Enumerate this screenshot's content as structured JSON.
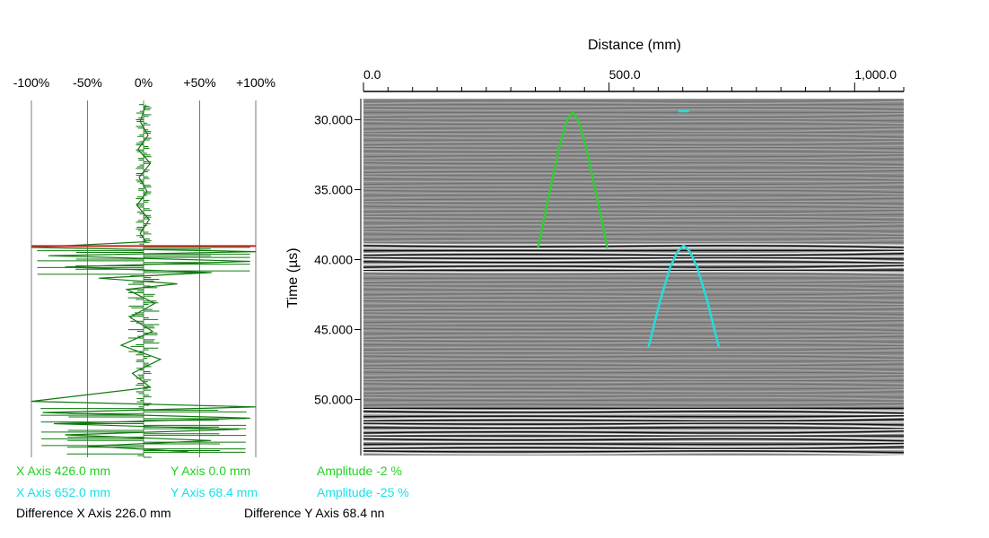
{
  "colors": {
    "green_cursor": "#33cc33",
    "cyan_cursor": "#22dddd",
    "reference_line": "#cc2222",
    "amplitude_trace": "#0f7a0f",
    "readout_green": "#1fd11f",
    "readout_cyan": "#18e0e8",
    "scan_background": "#8a8a8a"
  },
  "chart_data": [
    {
      "type": "line",
      "title": "",
      "orientation": "vertical amplitude profile (A-scan)",
      "x_ticks": [
        "-100%",
        "-50%",
        "0%",
        "+50%",
        "+100%"
      ],
      "xlim": [
        -100,
        100
      ],
      "ylim": [
        28.5,
        54
      ],
      "grid": true,
      "reference_line_y": 38.9,
      "series": [
        {
          "y": [
            28.8,
            30,
            31,
            32,
            33,
            34,
            35,
            36,
            37,
            38,
            38.6,
            39.0,
            39.3,
            39.6,
            40.0,
            40.4,
            40.8,
            41.2,
            41.6,
            42,
            43,
            44,
            45,
            46,
            47,
            48,
            49,
            50.0,
            50.4,
            50.8,
            51.2,
            51.6,
            52.0,
            52.4,
            52.8,
            53.2,
            53.6
          ],
          "x": [
            2,
            -3,
            4,
            -5,
            6,
            -4,
            3,
            -6,
            5,
            -3,
            2,
            -100,
            100,
            -85,
            95,
            -70,
            60,
            -40,
            30,
            -15,
            10,
            -12,
            8,
            -20,
            15,
            -10,
            6,
            -100,
            100,
            -90,
            95,
            -80,
            85,
            -70,
            60,
            -50,
            40
          ]
        }
      ]
    },
    {
      "type": "heatmap",
      "title": "",
      "xlabel": "Distance (mm)",
      "ylabel": "Time (µs)",
      "x_ticks": [
        "0.0",
        "500.0",
        "1,000.0"
      ],
      "y_ticks": [
        "30.000",
        "35.000",
        "40.000",
        "45.000",
        "50.000"
      ],
      "xlim": [
        0,
        1100
      ],
      "ylim": [
        28.5,
        54
      ],
      "grid": false,
      "bands": [
        {
          "from": 38.8,
          "to": 41.0,
          "strength": "strong"
        },
        {
          "from": 50.6,
          "to": 54.0,
          "strength": "strong"
        }
      ],
      "overlays": [
        {
          "name": "green",
          "apex_x": 426.0,
          "apex_y": 29.5,
          "x": [
            355,
            380,
            400,
            415,
            426,
            437,
            452,
            472,
            497
          ],
          "y": [
            39.2,
            35.0,
            31.8,
            30.0,
            29.5,
            30.0,
            31.8,
            35.0,
            39.2
          ]
        },
        {
          "name": "cyan",
          "apex_x": 652.0,
          "apex_y": 39.0,
          "x": [
            580,
            605,
            625,
            640,
            652,
            664,
            679,
            699,
            724
          ],
          "y": [
            46.3,
            42.8,
            40.5,
            39.4,
            39.0,
            39.4,
            40.5,
            42.8,
            46.3
          ]
        }
      ],
      "markers": [
        {
          "name": "cyan-tick",
          "x": 652,
          "y": 29.4
        }
      ]
    }
  ],
  "readouts": {
    "cursor1": {
      "x_axis": "X Axis  426.0 mm",
      "y_axis": "Y Axis  0.0 mm",
      "amplitude": "Amplitude  -2 %"
    },
    "cursor2": {
      "x_axis": "X Axis  652.0 mm",
      "y_axis": "Y Axis  68.4 mm",
      "amplitude": "Amplitude  -25 %"
    },
    "difference": {
      "x_axis": "Difference X Axis  226.0 mm",
      "y_axis": "Difference Y Axis  68.4 nn"
    }
  }
}
